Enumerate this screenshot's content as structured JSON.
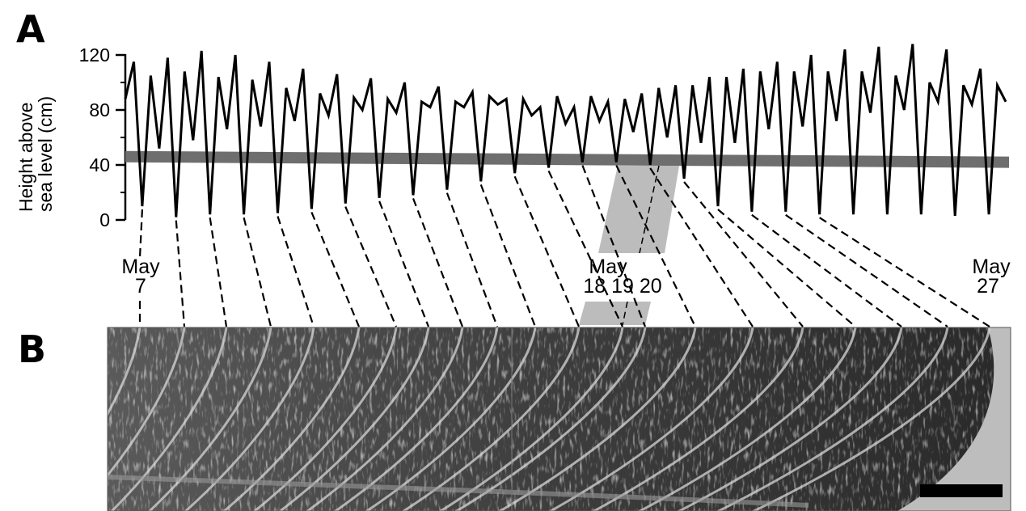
{
  "panels": {
    "a": "A",
    "b": "B"
  },
  "chart_data": {
    "type": "line",
    "ylabel_line1": "Height above",
    "ylabel_line2": "sea level (cm)",
    "yticks": [
      0,
      40,
      80,
      120
    ],
    "ylim": [
      0,
      130
    ],
    "series": [
      {
        "values": [
          88,
          115,
          10,
          105,
          52,
          118,
          2,
          108,
          58,
          123,
          4,
          104,
          66,
          120,
          4,
          102,
          68,
          115,
          5,
          96,
          72,
          110,
          8,
          92,
          76,
          106,
          12,
          89,
          80,
          103,
          16,
          88,
          78,
          100,
          18,
          86,
          82,
          97,
          22,
          86,
          82,
          93,
          28,
          90,
          84,
          88,
          34,
          88,
          76,
          82,
          38,
          90,
          70,
          82,
          42,
          90,
          72,
          86,
          42,
          88,
          64,
          92,
          40,
          96,
          60,
          98,
          30,
          98,
          56,
          104,
          10,
          104,
          56,
          110,
          6,
          108,
          66,
          115,
          6,
          108,
          68,
          120,
          4,
          108,
          72,
          124,
          4,
          108,
          78,
          126,
          4,
          105,
          80,
          128,
          4,
          100,
          86,
          124,
          3,
          98,
          84,
          110,
          4,
          98,
          86
        ]
      }
    ],
    "mean_level": [
      46,
      42
    ],
    "date_labels": [
      {
        "month": "May",
        "day": "7"
      },
      {
        "month": "May",
        "day": "18 19 20"
      },
      {
        "month": "May",
        "day": "27"
      }
    ]
  }
}
